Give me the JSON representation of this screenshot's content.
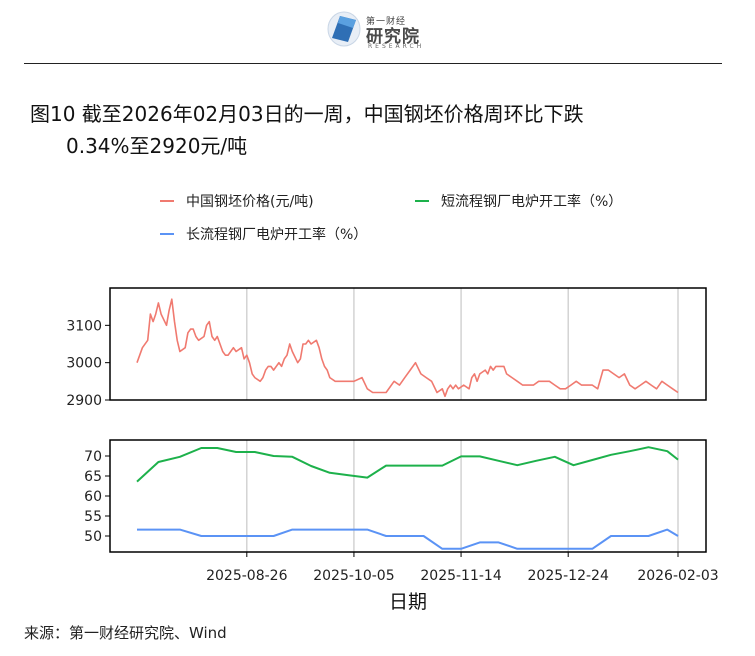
{
  "logo": {
    "top_text": "第一财经",
    "main_text": "研究院",
    "sub_text": "RESEARCH",
    "colors": {
      "primary": "#2f6fb5",
      "light": "#5aa0e0"
    }
  },
  "title": {
    "line1": "图10  截至2026年02月03日的一周，中国钢坯价格周环比下跌",
    "line2": "0.34%至2920元/吨"
  },
  "source": "来源：第一财经研究院、Wind",
  "chart_data": {
    "type": "line",
    "xlabel": "日期",
    "x_ticks": [
      "2025-08-26",
      "2025-10-05",
      "2025-11-14",
      "2025-12-24",
      "2026-02-03"
    ],
    "x_range": [
      "2025-07-16",
      "2026-02-03"
    ],
    "grid": true,
    "legend": "top",
    "panels": [
      {
        "ylim": [
          2900,
          3200
        ],
        "y_ticks": [
          2900,
          3000,
          3100
        ],
        "series": [
          {
            "name": "中国钢坯价格(元/吨)",
            "color": "#f07a70",
            "dates": [
              "2025-07-16",
              "2025-07-18",
              "2025-07-20",
              "2025-07-21",
              "2025-07-22",
              "2025-07-23",
              "2025-07-24",
              "2025-07-25",
              "2025-07-27",
              "2025-07-28",
              "2025-07-29",
              "2025-07-30",
              "2025-07-31",
              "2025-08-01",
              "2025-08-03",
              "2025-08-04",
              "2025-08-05",
              "2025-08-06",
              "2025-08-07",
              "2025-08-08",
              "2025-08-10",
              "2025-08-11",
              "2025-08-12",
              "2025-08-13",
              "2025-08-14",
              "2025-08-15",
              "2025-08-17",
              "2025-08-18",
              "2025-08-19",
              "2025-08-21",
              "2025-08-22",
              "2025-08-24",
              "2025-08-25",
              "2025-08-26",
              "2025-08-27",
              "2025-08-28",
              "2025-08-29",
              "2025-08-31",
              "2025-09-01",
              "2025-09-02",
              "2025-09-03",
              "2025-09-04",
              "2025-09-05",
              "2025-09-07",
              "2025-09-08",
              "2025-09-09",
              "2025-09-10",
              "2025-09-11",
              "2025-09-12",
              "2025-09-14",
              "2025-09-15",
              "2025-09-16",
              "2025-09-17",
              "2025-09-18",
              "2025-09-19",
              "2025-09-21",
              "2025-09-22",
              "2025-09-23",
              "2025-09-24",
              "2025-09-25",
              "2025-09-26",
              "2025-09-28",
              "2025-09-29",
              "2025-09-30",
              "2025-10-01",
              "2025-10-02",
              "2025-10-03",
              "2025-10-05",
              "2025-10-08",
              "2025-10-10",
              "2025-10-12",
              "2025-10-14",
              "2025-10-17",
              "2025-10-20",
              "2025-10-22",
              "2025-10-24",
              "2025-10-26",
              "2025-10-28",
              "2025-10-30",
              "2025-11-01",
              "2025-11-03",
              "2025-11-05",
              "2025-11-07",
              "2025-11-08",
              "2025-11-09",
              "2025-11-10",
              "2025-11-11",
              "2025-11-12",
              "2025-11-13",
              "2025-11-15",
              "2025-11-17",
              "2025-11-18",
              "2025-11-19",
              "2025-11-20",
              "2025-11-21",
              "2025-11-23",
              "2025-11-24",
              "2025-11-25",
              "2025-11-26",
              "2025-11-27",
              "2025-11-28",
              "2025-11-30",
              "2025-12-01",
              "2025-12-03",
              "2025-12-05",
              "2025-12-07",
              "2025-12-09",
              "2025-12-11",
              "2025-12-13",
              "2025-12-15",
              "2025-12-17",
              "2025-12-19",
              "2025-12-21",
              "2025-12-23",
              "2025-12-25",
              "2025-12-27",
              "2025-12-29",
              "2025-12-31",
              "2026-01-02",
              "2026-01-04",
              "2026-01-06",
              "2026-01-08",
              "2026-01-10",
              "2026-01-12",
              "2026-01-14",
              "2026-01-16",
              "2026-01-18",
              "2026-01-20",
              "2026-01-22",
              "2026-01-24",
              "2026-01-26",
              "2026-01-28",
              "2026-01-30",
              "2026-02-01",
              "2026-02-03"
            ],
            "values": [
              3000,
              3040,
              3060,
              3130,
              3110,
              3130,
              3160,
              3130,
              3100,
              3140,
              3170,
              3110,
              3060,
              3030,
              3040,
              3080,
              3090,
              3090,
              3070,
              3060,
              3070,
              3100,
              3110,
              3070,
              3060,
              3070,
              3030,
              3020,
              3020,
              3040,
              3030,
              3040,
              3010,
              3020,
              3000,
              2970,
              2960,
              2950,
              2960,
              2980,
              2990,
              2990,
              2980,
              3000,
              2990,
              3010,
              3020,
              3050,
              3030,
              3000,
              3010,
              3050,
              3050,
              3060,
              3050,
              3060,
              3040,
              3010,
              2990,
              2980,
              2960,
              2950,
              2950,
              2950,
              2950,
              2950,
              2950,
              2950,
              2960,
              2930,
              2920,
              2920,
              2920,
              2950,
              2940,
              2960,
              2980,
              3000,
              2970,
              2960,
              2950,
              2920,
              2930,
              2910,
              2930,
              2940,
              2930,
              2940,
              2930,
              2940,
              2930,
              2960,
              2970,
              2950,
              2970,
              2980,
              2970,
              2990,
              2980,
              2990,
              2990,
              2990,
              2970,
              2960,
              2950,
              2940,
              2940,
              2940,
              2950,
              2950,
              2950,
              2940,
              2930,
              2930,
              2940,
              2950,
              2940,
              2940,
              2940,
              2930,
              2980,
              2980,
              2970,
              2960,
              2970,
              2940,
              2930,
              2940,
              2950,
              2940,
              2930,
              2950,
              2940,
              2930,
              2920
            ]
          }
        ]
      },
      {
        "ylim": [
          46,
          74
        ],
        "y_ticks": [
          50,
          55,
          60,
          65,
          70
        ],
        "series": [
          {
            "name": "短流程钢厂电炉开工率（%）",
            "color": "#1db14b",
            "dates": [
              "2025-07-16",
              "2025-07-24",
              "2025-08-01",
              "2025-08-09",
              "2025-08-15",
              "2025-08-22",
              "2025-08-29",
              "2025-09-05",
              "2025-09-12",
              "2025-09-19",
              "2025-09-26",
              "2025-10-03",
              "2025-10-10",
              "2025-10-17",
              "2025-10-24",
              "2025-10-31",
              "2025-11-07",
              "2025-11-14",
              "2025-11-21",
              "2025-11-28",
              "2025-12-05",
              "2025-12-12",
              "2025-12-19",
              "2025-12-26",
              "2026-01-02",
              "2026-01-09",
              "2026-01-16",
              "2026-01-23",
              "2026-01-30",
              "2026-02-03"
            ],
            "values": [
              63.6,
              68.5,
              69.8,
              72.0,
              72.0,
              71.0,
              71.0,
              70.0,
              69.8,
              67.5,
              65.8,
              65.2,
              64.6,
              67.6,
              67.6,
              67.6,
              67.6,
              69.9,
              69.9,
              68.8,
              67.7,
              68.8,
              69.8,
              67.7,
              69.0,
              70.3,
              71.2,
              72.2,
              71.2,
              69.1
            ]
          },
          {
            "name": "长流程钢厂电炉开工率（%）",
            "color": "#5b93f5",
            "dates": [
              "2025-07-16",
              "2025-07-24",
              "2025-08-01",
              "2025-08-09",
              "2025-08-15",
              "2025-08-22",
              "2025-08-29",
              "2025-09-05",
              "2025-09-12",
              "2025-09-19",
              "2025-09-26",
              "2025-10-03",
              "2025-10-10",
              "2025-10-17",
              "2025-10-24",
              "2025-10-31",
              "2025-11-07",
              "2025-11-14",
              "2025-11-21",
              "2025-11-28",
              "2025-12-05",
              "2025-12-12",
              "2025-12-19",
              "2025-12-26",
              "2026-01-02",
              "2026-01-09",
              "2026-01-16",
              "2026-01-23",
              "2026-01-30",
              "2026-02-03"
            ],
            "values": [
              51.6,
              51.6,
              51.6,
              50.0,
              50.0,
              50.0,
              50.0,
              50.0,
              51.6,
              51.6,
              51.6,
              51.6,
              51.6,
              50.0,
              50.0,
              50.0,
              46.8,
              46.8,
              48.4,
              48.4,
              46.8,
              46.8,
              46.8,
              46.8,
              46.8,
              50.0,
              50.0,
              50.0,
              51.6,
              50.0
            ]
          }
        ]
      }
    ]
  }
}
